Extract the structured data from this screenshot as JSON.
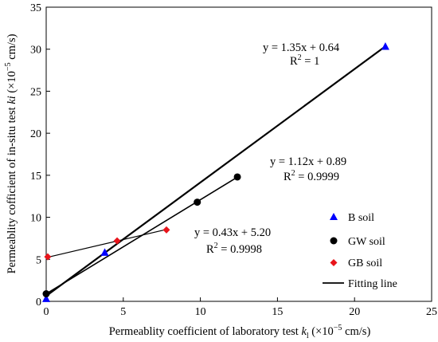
{
  "chart_data": {
    "type": "scatter",
    "xlabel": {
      "pre": "Permeablity coefficient of laboratory test ",
      "sym": "k",
      "sub": "l",
      "post": " (×10",
      "exp": "−5",
      "unit": " cm/s)"
    },
    "ylabel": {
      "pre": "Permeablity cofficient of  in-situ test  ",
      "sym": "ki",
      "post": " (×10",
      "exp": "−5",
      "unit": " cm/s)"
    },
    "xlim": [
      0,
      25
    ],
    "ylim": [
      0,
      35
    ],
    "xticks": [
      0,
      5,
      10,
      15,
      20,
      25
    ],
    "yticks": [
      0,
      5,
      10,
      15,
      20,
      25,
      30,
      35
    ],
    "grid": false,
    "legend_position": "right",
    "series": [
      {
        "name": "B soil",
        "marker": "triangle",
        "color": "#0000ff",
        "points": [
          [
            0.0,
            0.3
          ],
          [
            3.8,
            5.8
          ],
          [
            22.0,
            30.3
          ]
        ],
        "fit": {
          "slope": 1.35,
          "intercept": 0.64,
          "equation": "y = 1.35x + 0.64",
          "r2_label": "R",
          "r2_exp": "2",
          "r2_value": " = 1"
        }
      },
      {
        "name": "GW soil",
        "marker": "circle",
        "color": "#000000",
        "points": [
          [
            0.0,
            0.9
          ],
          [
            9.8,
            11.8
          ],
          [
            12.4,
            14.8
          ]
        ],
        "fit": {
          "slope": 1.12,
          "intercept": 0.89,
          "equation": "y = 1.12x + 0.89",
          "r2_label": "R",
          "r2_exp": "2",
          "r2_value": " = 0.9999"
        }
      },
      {
        "name": "GB soil",
        "marker": "diamond",
        "color": "#e8141b",
        "points": [
          [
            0.1,
            5.3
          ],
          [
            4.6,
            7.2
          ],
          [
            7.8,
            8.5
          ]
        ],
        "fit": {
          "slope": 0.43,
          "intercept": 5.2,
          "equation": "y = 0.43x + 5.20",
          "r2_label": "R",
          "r2_exp": "2",
          "r2_value": " = 0.9998"
        }
      }
    ],
    "fitting_line_label": "Fitting line"
  }
}
